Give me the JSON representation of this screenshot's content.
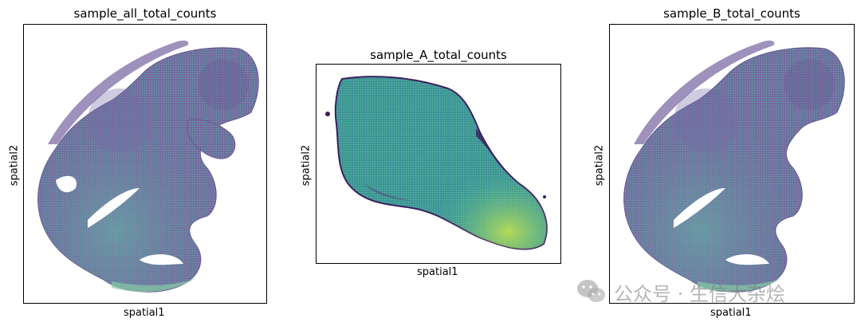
{
  "chart_data": [
    {
      "type": "scatter",
      "title": "sample_all_total_counts",
      "xlabel": "spatial1",
      "ylabel": "spatial2",
      "grid": false,
      "colormap": "viridis",
      "colors": {
        "low": "#5a4a86",
        "mid": "#3f8f9a",
        "high": "#9ddb5e"
      }
    },
    {
      "type": "scatter",
      "title": "sample_A_total_counts",
      "xlabel": "spatial1",
      "ylabel": "spatial2",
      "grid": false,
      "colormap": "viridis",
      "colors": {
        "low": "#482a6e",
        "mid": "#33a3a0",
        "high": "#b5e14e"
      }
    },
    {
      "type": "scatter",
      "title": "sample_B_total_counts",
      "xlabel": "spatial1",
      "ylabel": "spatial2",
      "grid": false,
      "colormap": "viridis",
      "colors": {
        "low": "#5a4a86",
        "mid": "#3f8f9a",
        "high": "#9ddb5e"
      }
    }
  ],
  "watermark": {
    "text": "公众号 · 生信大杂烩",
    "icon": "wechat-icon"
  }
}
